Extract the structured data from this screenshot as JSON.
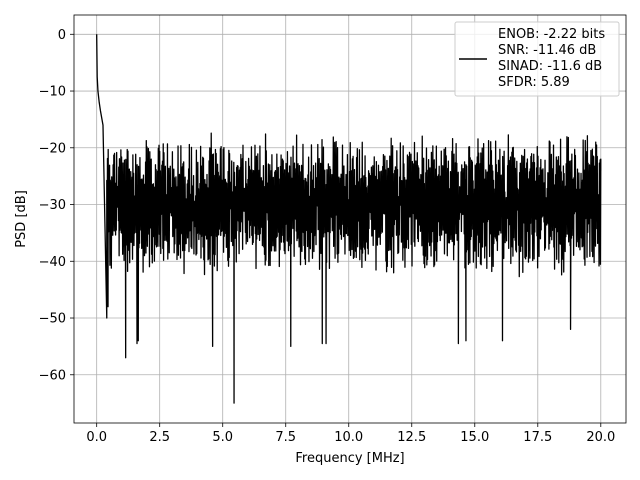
{
  "chart_data": {
    "type": "line",
    "xlabel": "Frequency [MHz]",
    "ylabel": "PSD [dB]",
    "xlim": [
      -0.9,
      21.0
    ],
    "ylim": [
      -68.5,
      3.4
    ],
    "xticks": [
      0.0,
      2.5,
      5.0,
      7.5,
      10.0,
      12.5,
      15.0,
      17.5,
      20.0
    ],
    "xtick_labels": [
      "0.0",
      "2.5",
      "5.0",
      "7.5",
      "10.0",
      "12.5",
      "15.0",
      "17.5",
      "20.0"
    ],
    "yticks": [
      0,
      -10,
      -20,
      -30,
      -40,
      -50,
      -60
    ],
    "ytick_labels": [
      "0",
      "−10",
      "−20",
      "−30",
      "−40",
      "−50",
      "−60"
    ],
    "grid": true,
    "legend_position": "top-right",
    "line_color": "#000000",
    "series": [
      {
        "legend_lines": [
          "ENOB: -2.22 bits",
          "SNR: -11.46 dB",
          "SINAD: -11.6 dB",
          "SFDR: 5.89"
        ],
        "noise_floor_db": -30,
        "noise_band_db": [
          -43,
          -17
        ],
        "x": [
          0.0,
          0.02,
          0.05,
          0.1,
          0.15,
          0.25,
          0.4,
          0.45,
          1.15,
          1.6,
          1.65,
          4.6,
          5.45,
          7.7,
          8.95,
          9.1,
          14.35,
          14.65,
          16.1,
          18.8,
          19.8,
          20.0
        ],
        "y": [
          0.0,
          -7.5,
          -10.0,
          -12.0,
          -13.5,
          -16.0,
          -50.0,
          -48.0,
          -57.0,
          -54.5,
          -54.0,
          -55.0,
          -65.0,
          -55.0,
          -54.5,
          -54.5,
          -54.5,
          -54.0,
          -54.0,
          -52.0,
          -19.0,
          -22.0
        ]
      }
    ]
  }
}
